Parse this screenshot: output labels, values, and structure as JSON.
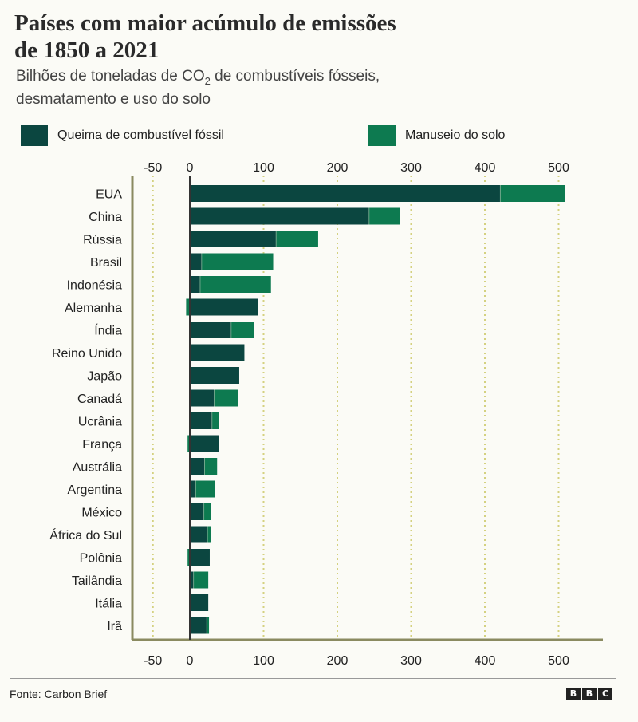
{
  "title_line1": "Países com maior acúmulo de emissões",
  "title_line2": "de 1850 a 2021",
  "subtitle_pre": "Bilhões de toneladas de CO",
  "subtitle_sub": "2",
  "subtitle_post": " de combustíveis fósseis,",
  "subtitle_line2": "desmatamento e uso do solo",
  "colors": {
    "fossil": "#0b4640",
    "land": "#0d7a50",
    "grid": "#d4d180",
    "axis": "#8a8a60"
  },
  "chart_data": {
    "type": "bar",
    "orientation": "horizontal",
    "stacked": true,
    "categories": [
      "EUA",
      "China",
      "Rússia",
      "Brasil",
      "Indonésia",
      "Alemanha",
      "Índia",
      "Reino Unido",
      "Japão",
      "Canadá",
      "Ucrânia",
      "França",
      "Austrália",
      "Argentina",
      "México",
      "África do Sul",
      "Polônia",
      "Tailândia",
      "Itália",
      "Irã"
    ],
    "series": [
      {
        "name": "Queima de combustível fóssil",
        "values": [
          421,
          243,
          117,
          16,
          14,
          92,
          56,
          74,
          67,
          33,
          30,
          39,
          20,
          8,
          19,
          24,
          27,
          5,
          25,
          23
        ]
      },
      {
        "name": "Manuseio do solo",
        "values": [
          88,
          42,
          57,
          97,
          96,
          -5,
          31,
          0,
          0,
          32,
          10,
          -3,
          17,
          26,
          10,
          5,
          -3,
          20,
          0,
          3
        ]
      }
    ],
    "xlim": [
      -50,
      500
    ],
    "xticks": [
      "-50",
      "0",
      "100",
      "200",
      "300",
      "400",
      "500"
    ],
    "xtick_values": [
      -50,
      0,
      100,
      200,
      300,
      400,
      500
    ],
    "grid": "vertical dotted",
    "legend_position": "top"
  },
  "footer": {
    "source": "Fonte: Carbon Brief",
    "brand": [
      "B",
      "B",
      "C"
    ]
  }
}
